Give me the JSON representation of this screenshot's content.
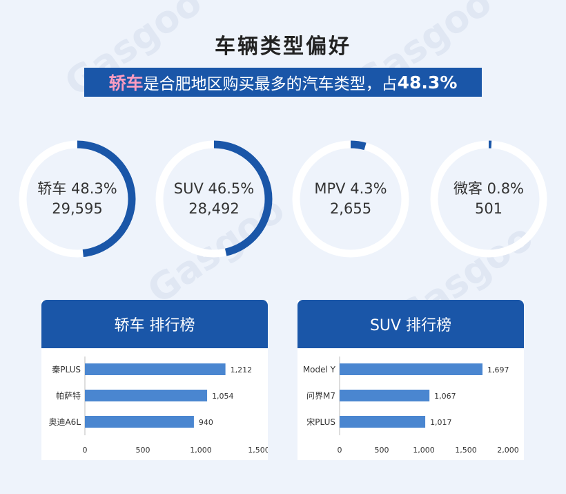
{
  "header": {
    "title": "车辆类型偏好",
    "subtitle_highlight": "轿车",
    "subtitle_text": "是合肥地区购买最多的汽车类型，占",
    "subtitle_pct": "48.3%"
  },
  "colors": {
    "accent": "#1a56a8",
    "bar": "#4a86d0",
    "track": "#ffffff",
    "highlight": "#ff9cc0"
  },
  "chart_data": [
    {
      "type": "pie",
      "series": [
        {
          "name": "轿车",
          "percent": 48.3,
          "percent_label": "48.3%",
          "value": "29,595"
        },
        {
          "name": "SUV",
          "percent": 46.5,
          "percent_label": "46.5%",
          "value": "28,492"
        },
        {
          "name": "MPV",
          "percent": 4.3,
          "percent_label": "4.3%",
          "value": "2,655"
        },
        {
          "name": "微客",
          "percent": 0.8,
          "percent_label": "0.8%",
          "value": "501"
        }
      ]
    },
    {
      "type": "bar",
      "orientation": "horizontal",
      "title": "轿车 排行榜",
      "categories": [
        "秦PLUS",
        "帕萨特",
        "奥迪A6L"
      ],
      "values": [
        1212,
        1054,
        940
      ],
      "value_labels": [
        "1,212",
        "1,054",
        "940"
      ],
      "xlim": [
        0,
        1500
      ],
      "xticks": [
        "0",
        "500",
        "1,000",
        "1,500"
      ]
    },
    {
      "type": "bar",
      "orientation": "horizontal",
      "title": "SUV 排行榜",
      "categories": [
        "Model Y",
        "问界M7",
        "宋PLUS"
      ],
      "values": [
        1697,
        1067,
        1017
      ],
      "value_labels": [
        "1,697",
        "1,067",
        "1,017"
      ],
      "xlim": [
        0,
        2000
      ],
      "xticks": [
        "0",
        "500",
        "1,000",
        "1,500",
        "2,000"
      ]
    }
  ]
}
